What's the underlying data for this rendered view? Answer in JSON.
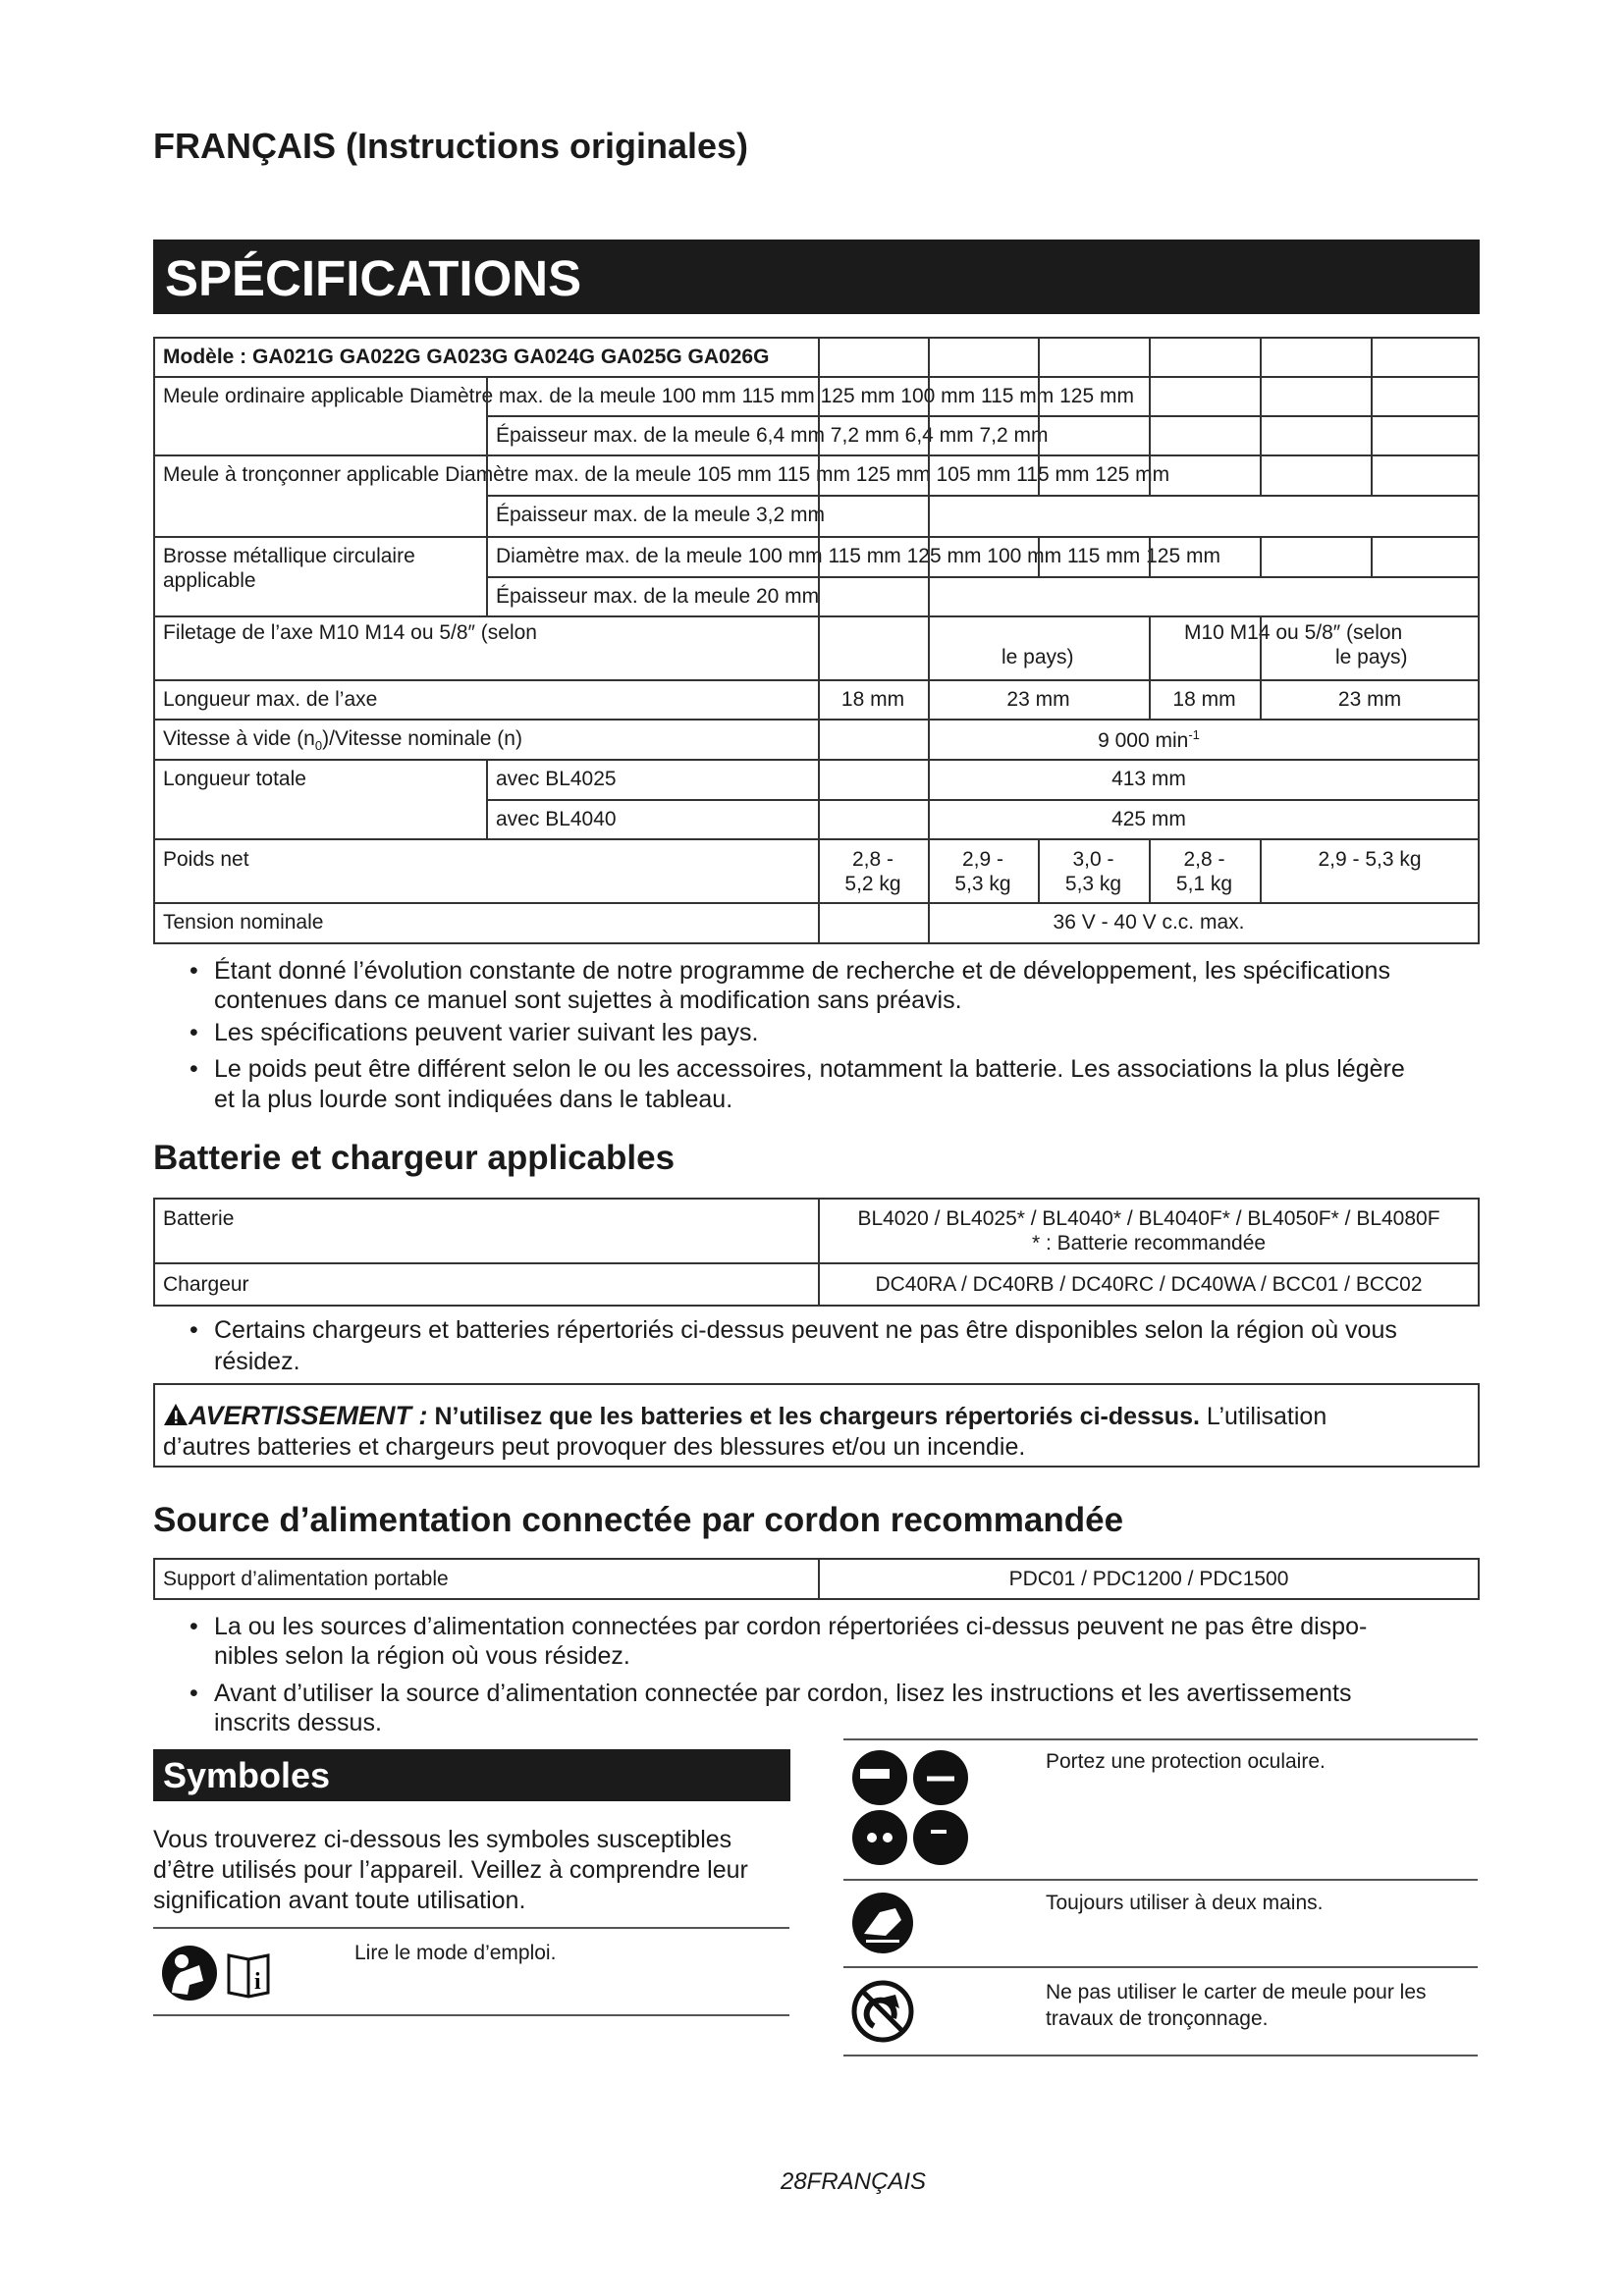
{
  "header": {
    "title": "FRANÇAIS (Instructions originales)"
  },
  "specs": {
    "banner": "SPÉCIFICATIONS",
    "model_row": "Modèle : GA021G GA022G GA023G GA024G GA025G GA026G",
    "wheel_diam": "Meule ordinaire applicable Diamètre max. de la meule 100 mm 115 mm 125 mm 100 mm 115 mm 125 mm",
    "wheel_thick": "Épaisseur max. de la meule 6,4 mm 7,2 mm 6,4 mm 7,2 mm",
    "cut_diam": "Meule à tronçonner applicable Diamètre max. de la meule 105 mm 115 mm 125 mm 105 mm 115 mm 125 mm",
    "cut_thick": "Épaisseur max. de la meule 3,2 mm",
    "brush_label_1": "Brosse métallique circulaire",
    "brush_label_2": "applicable",
    "brush_diam": "Diamètre max. de la meule 100 mm 115 mm 125 mm 100 mm 115 mm 125 mm",
    "brush_thick": "Épaisseur max. de la meule 20 mm",
    "thread_label": "Filetage de l’axe M10 M14 ou 5/8″ (selon",
    "thread_a_2": "le pays)",
    "thread_b_1": "M10 M14 ou 5/8″ (selon",
    "thread_b_2": "le pays)",
    "spindle_label": "Longueur max. de l’axe",
    "spindle_values": [
      "18 mm",
      "23 mm",
      "18 mm",
      "23 mm"
    ],
    "speed_label_a": "Vitesse à vide (n",
    "speed_label_sub": "0",
    "speed_label_b": ")/Vitesse nominale (n)",
    "speed_value": "9 000 min",
    "speed_unit_sup": "-1",
    "length_label": "Longueur totale",
    "length_rows": [
      {
        "label": "avec BL4025",
        "value": "413 mm"
      },
      {
        "label": "avec BL4040",
        "value": "425 mm"
      }
    ],
    "weight_label": "Poids net",
    "weight_values": [
      [
        "2,8 -",
        "5,2 kg"
      ],
      [
        "2,9 -",
        "5,3 kg"
      ],
      [
        "3,0 -",
        "5,3 kg"
      ],
      [
        "2,8 -",
        "5,1 kg"
      ]
    ],
    "weight_last": "2,9 - 5,3 kg",
    "voltage_label": "Tension nominale",
    "voltage_value": "36 V - 40 V c.c. max."
  },
  "spec_notes": [
    [
      "Étant donné l’évolution constante de notre programme de recherche et de développement, les spécifications",
      "contenues dans ce manuel sont sujettes à modification sans préavis."
    ],
    [
      "Les spécifications peuvent varier suivant les pays."
    ],
    [
      "Le poids peut être différent selon le ou les accessoires, notamment la batterie. Les associations la plus légère",
      "et la plus lourde sont indiquées dans le tableau."
    ]
  ],
  "battery": {
    "heading": "Batterie et chargeur applicables",
    "battery_label": "Batterie",
    "battery_value": "BL4020 / BL4025* / BL4040* / BL4040F*  / BL4050F* / BL4080F",
    "battery_note": "* : Batterie recommandée",
    "charger_label": "Chargeur",
    "charger_value": "DC40RA / DC40RB / DC40RC / DC40WA / BCC01 / BCC02",
    "note": [
      "Certains chargeurs et batteries répertoriés ci-dessus peuvent ne pas être disponibles selon la région où vous",
      "résidez."
    ]
  },
  "warning": {
    "icon": "warning-triangle-icon",
    "label": "AVERTISSEMENT :",
    "bold_text": " N’utilisez que les batteries et les chargeurs répertoriés ci-dessus.",
    "text_1": " L’utilisation",
    "text_2": "d’autres batteries et chargeurs peut provoquer des blessures et/ou un incendie."
  },
  "corded": {
    "heading": "Source d’alimentation connectée par cordon recommandée",
    "label": "Support d’alimentation portable",
    "value": "PDC01 / PDC1200 / PDC1500",
    "notes": [
      [
        "La ou les sources d’alimentation connectées par cordon répertoriées ci-dessus peuvent ne pas être dispo-",
        "nibles selon la région où vous résidez."
      ],
      [
        "Avant d’utiliser la source d’alimentation connectée par cordon, lisez les instructions et les avertissements",
        "inscrits dessus."
      ]
    ]
  },
  "symbols": {
    "banner": "Symboles",
    "intro": [
      "Vous trouverez ci-dessous les symboles susceptibles",
      "d’être utilisés pour l’appareil. Veillez à comprendre leur",
      "signification avant toute utilisation."
    ],
    "items": [
      {
        "icon": "read-manual-icon",
        "text": [
          "Lire le mode d’emploi."
        ]
      },
      {
        "icon": "eye-protection-icon",
        "text": [
          "Portez une protection oculaire."
        ]
      },
      {
        "icon": "two-hands-icon",
        "text": [
          "Toujours utiliser à deux mains."
        ]
      },
      {
        "icon": "no-wheel-guard-cutting-icon",
        "text": [
          "Ne pas utiliser le carter de meule pour les",
          "travaux de tronçonnage."
        ]
      }
    ]
  },
  "footer": {
    "page": "28FRANÇAIS"
  }
}
